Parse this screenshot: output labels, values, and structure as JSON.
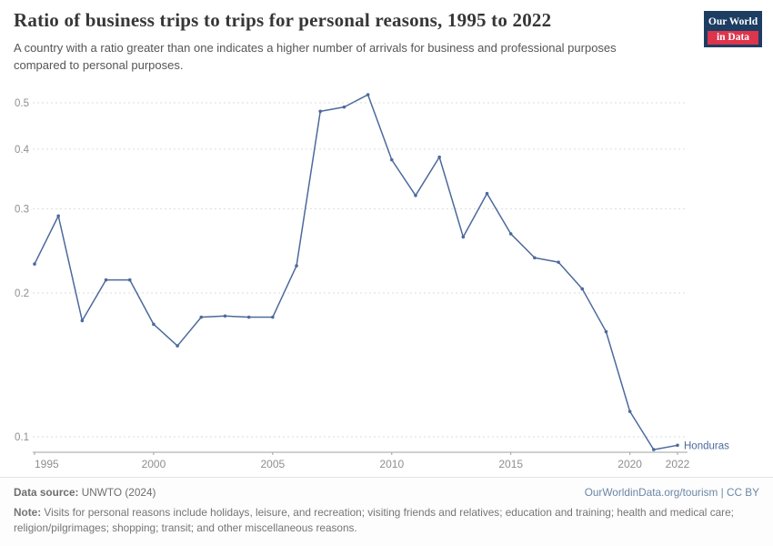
{
  "header": {
    "title": "Ratio of business trips to trips for personal reasons, 1995 to 2022",
    "subtitle": "A country with a ratio greater than one indicates a higher number of arrivals for business and professional purposes compared to personal purposes.",
    "logo": {
      "line1": "Our World",
      "line2": "in Data"
    }
  },
  "chart_data": {
    "type": "line",
    "title": "Ratio of business trips to trips for personal reasons, 1995 to 2022",
    "xlabel": "",
    "ylabel": "",
    "yscale": "log",
    "grid": true,
    "x": [
      1995,
      1996,
      1997,
      1998,
      1999,
      2000,
      2001,
      2002,
      2003,
      2004,
      2005,
      2006,
      2007,
      2008,
      2009,
      2010,
      2011,
      2012,
      2013,
      2014,
      2015,
      2016,
      2017,
      2018,
      2019,
      2020,
      2021,
      2022
    ],
    "series": [
      {
        "name": "Honduras",
        "values": [
          0.23,
          0.29,
          0.175,
          0.213,
          0.213,
          0.172,
          0.155,
          0.178,
          0.179,
          0.178,
          0.178,
          0.228,
          0.48,
          0.49,
          0.52,
          0.38,
          0.32,
          0.385,
          0.262,
          0.323,
          0.266,
          0.237,
          0.232,
          0.204,
          0.166,
          0.113,
          0.094,
          0.096
        ]
      }
    ],
    "yticks": [
      0.1,
      0.2,
      0.3,
      0.4,
      0.5
    ],
    "xticks": [
      1995,
      2000,
      2005,
      2010,
      2015,
      2020,
      2022
    ],
    "ylim": [
      0.093,
      0.56
    ],
    "line_color": "#4C6A9C",
    "grid_color": "#dedede",
    "axis_color": "#a1a1a1",
    "tick_label_color": "#8f8f8f",
    "legend_position": "end-of-line"
  },
  "footer": {
    "source_label": "Data source:",
    "source_rest": " UNWTO (2024)",
    "link": "OurWorldinData.org/tourism | CC BY",
    "note_label": "Note:",
    "note_rest": " Visits for personal reasons include holidays, leisure, and recreation; visiting friends and relatives; education and training; health and medical care; religion/pilgrimages; shopping; transit; and other miscellaneous reasons."
  }
}
